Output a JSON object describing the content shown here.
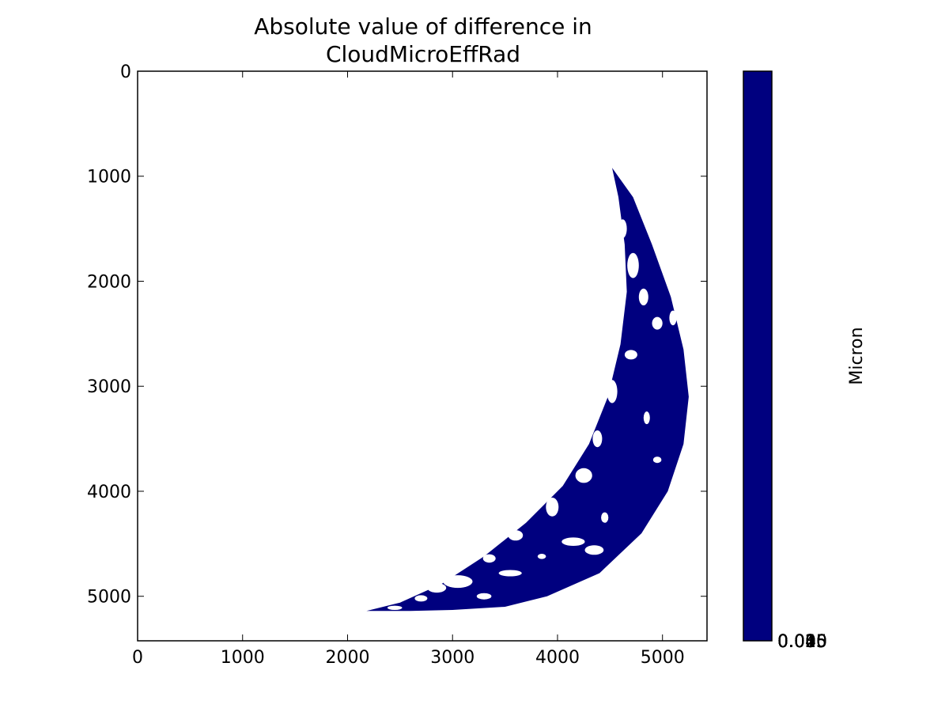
{
  "chart_data": {
    "type": "heatmap",
    "title_lines": [
      "Absolute value of difference in",
      "CloudMicroEffRad"
    ],
    "x_ticks": [
      0,
      1000,
      2000,
      3000,
      4000,
      5000
    ],
    "y_ticks": [
      0,
      1000,
      2000,
      3000,
      4000,
      5000
    ],
    "x_tick_labels": [
      "0",
      "1000",
      "2000",
      "3000",
      "4000",
      "5000"
    ],
    "y_tick_labels": [
      "0",
      "1000",
      "2000",
      "3000",
      "4000",
      "5000"
    ],
    "xlim": [
      0,
      5424
    ],
    "ylim": [
      5424,
      0
    ],
    "y_axis_inverted": true,
    "grid": false,
    "colorbar": {
      "label": "Micron",
      "color": "#00007f",
      "tick_overlap_labels": [
        "0.000",
        "0.005",
        "0.010",
        "0.015",
        "0.025",
        "0.035",
        "0.045"
      ]
    },
    "data_region": {
      "description_color": "#00007f",
      "outer_arc": [
        [
          4520,
          920
        ],
        [
          4720,
          1200
        ],
        [
          4900,
          1650
        ],
        [
          5080,
          2150
        ],
        [
          5200,
          2650
        ],
        [
          5250,
          3100
        ],
        [
          5200,
          3550
        ],
        [
          5050,
          4000
        ],
        [
          4800,
          4400
        ],
        [
          4400,
          4780
        ],
        [
          3900,
          5000
        ],
        [
          3500,
          5100
        ],
        [
          3000,
          5130
        ],
        [
          2600,
          5140
        ],
        [
          2180,
          5140
        ]
      ],
      "inner_arc": [
        [
          2180,
          5140
        ],
        [
          2500,
          5060
        ],
        [
          2900,
          4880
        ],
        [
          3300,
          4620
        ],
        [
          3700,
          4300
        ],
        [
          4050,
          3950
        ],
        [
          4300,
          3550
        ],
        [
          4480,
          3100
        ],
        [
          4600,
          2600
        ],
        [
          4660,
          2100
        ],
        [
          4640,
          1650
        ],
        [
          4580,
          1200
        ],
        [
          4520,
          920
        ]
      ]
    },
    "holes": [
      [
        4620,
        1500,
        40,
        90
      ],
      [
        4720,
        1850,
        55,
        120
      ],
      [
        4820,
        2150,
        45,
        80
      ],
      [
        4950,
        2400,
        50,
        60
      ],
      [
        4700,
        2700,
        60,
        45
      ],
      [
        4520,
        3050,
        50,
        110
      ],
      [
        4380,
        3500,
        45,
        80
      ],
      [
        4250,
        3850,
        80,
        70
      ],
      [
        3950,
        4150,
        60,
        90
      ],
      [
        3600,
        4420,
        70,
        50
      ],
      [
        3350,
        4640,
        60,
        40
      ],
      [
        4150,
        4480,
        110,
        40
      ],
      [
        4350,
        4560,
        90,
        45
      ],
      [
        3050,
        4860,
        140,
        60
      ],
      [
        2850,
        4920,
        90,
        45
      ],
      [
        3550,
        4780,
        110,
        30
      ],
      [
        2700,
        5020,
        60,
        30
      ],
      [
        3300,
        5000,
        70,
        30
      ],
      [
        4850,
        3300,
        30,
        60
      ],
      [
        5100,
        2350,
        35,
        70
      ],
      [
        4950,
        3700,
        40,
        30
      ],
      [
        4450,
        4250,
        35,
        50
      ],
      [
        3850,
        4620,
        40,
        25
      ],
      [
        2450,
        5110,
        70,
        20
      ]
    ]
  }
}
